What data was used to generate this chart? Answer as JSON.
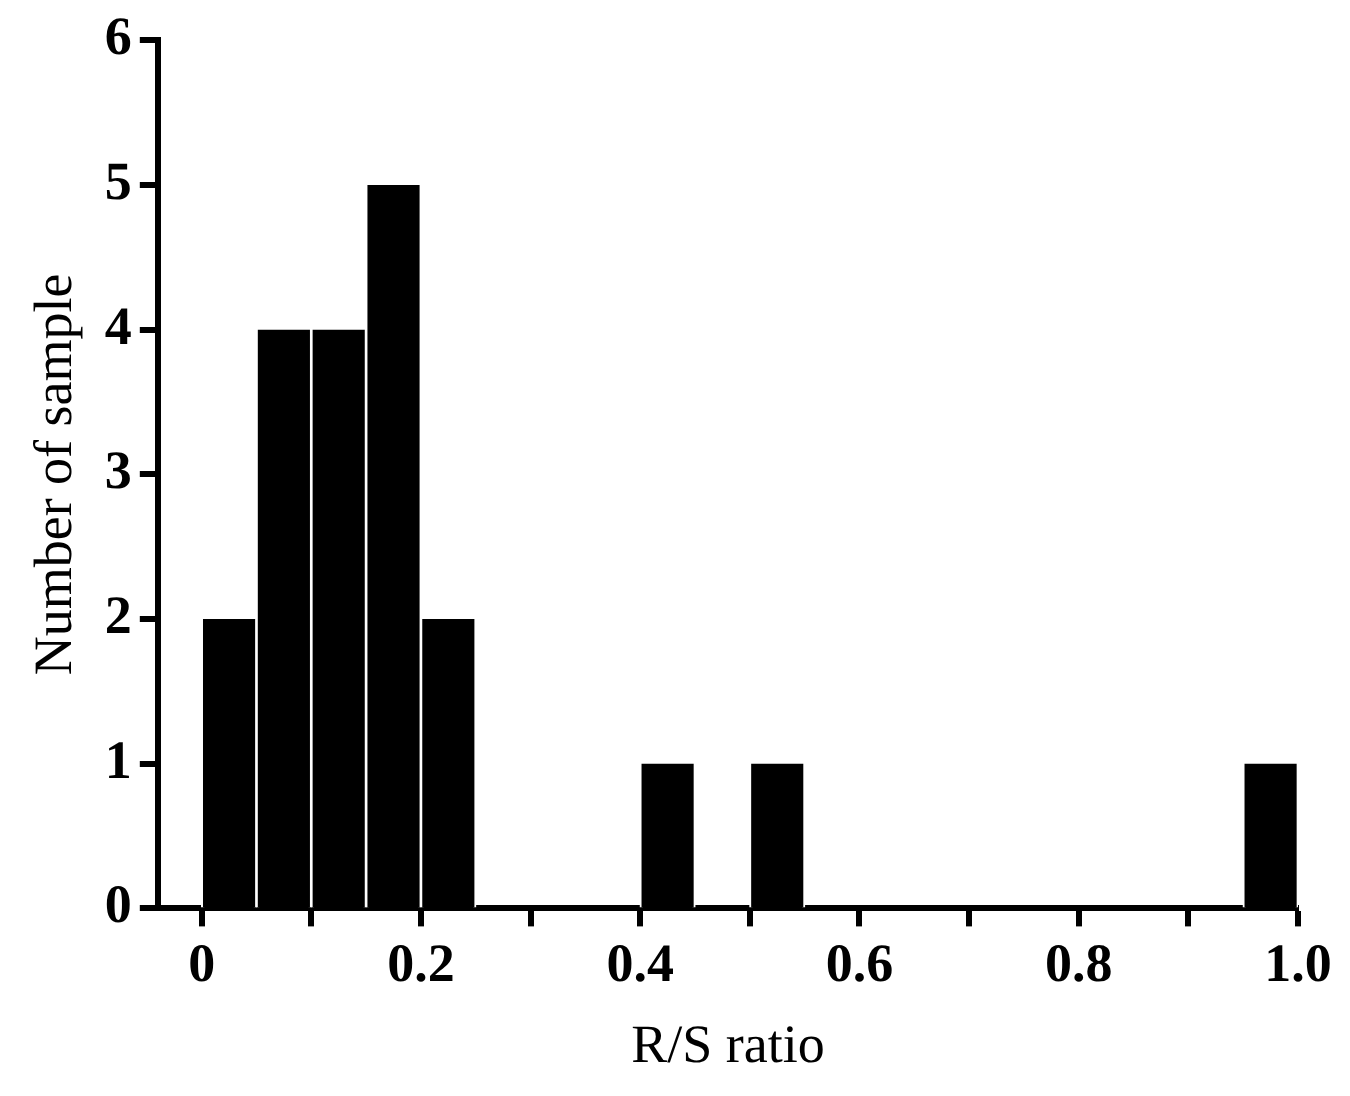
{
  "chart_data": {
    "type": "histogram",
    "xlabel": "R/S ratio",
    "ylabel": "Number of sample",
    "bins": [
      0,
      0.05,
      0.1,
      0.15,
      0.2,
      0.25,
      0.3,
      0.35,
      0.4,
      0.45,
      0.5,
      0.55,
      0.6,
      0.65,
      0.7,
      0.75,
      0.8,
      0.85,
      0.9,
      0.95,
      1.0
    ],
    "values": [
      2,
      4,
      4,
      5,
      2,
      0,
      0,
      0,
      1,
      0,
      1,
      0,
      0,
      0,
      0,
      0,
      0,
      0,
      0,
      1
    ],
    "color": "#000000",
    "xlim": [
      -0.04,
      1.0
    ],
    "xticks": [
      0,
      {
        "value": 0.1,
        "label": null
      },
      {
        "value": 0.2,
        "label": "0.2"
      },
      {
        "value": 0.3,
        "label": null
      },
      {
        "value": 0.4,
        "label": "0.4"
      },
      {
        "value": 0.5,
        "label": null
      },
      {
        "value": 0.6,
        "label": "0.6"
      },
      {
        "value": 0.7,
        "label": null
      },
      {
        "value": 0.8,
        "label": "0.8"
      },
      {
        "value": 0.9,
        "label": null
      },
      {
        "value": 1.0,
        "label": "1.0"
      }
    ],
    "ylim": [
      0,
      6
    ],
    "yticks": [
      0,
      1,
      2,
      3,
      4,
      5,
      6
    ],
    "grid": false,
    "legend": false
  }
}
